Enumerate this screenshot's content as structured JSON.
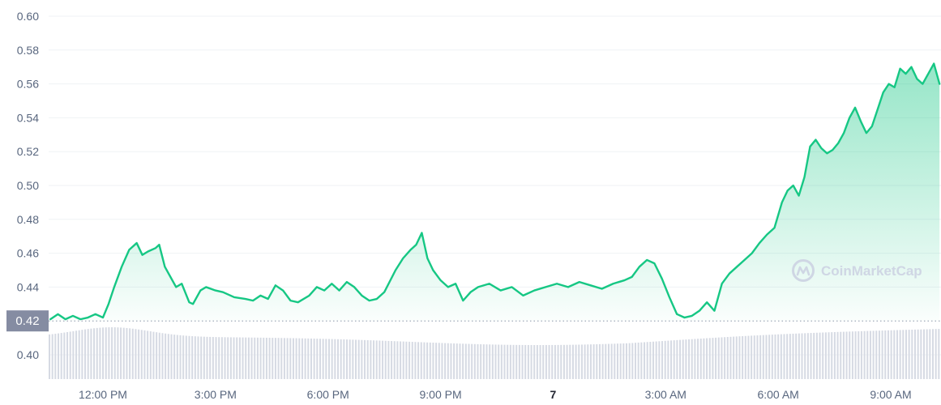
{
  "chart_data": {
    "type": "area",
    "title": "",
    "xlabel": "",
    "ylabel": "",
    "ylim": [
      0.385,
      0.605
    ],
    "yticks": [
      "0.60",
      "0.58",
      "0.56",
      "0.54",
      "0.52",
      "0.50",
      "0.48",
      "0.46",
      "0.44",
      "0.40"
    ],
    "ytick_values": [
      0.6,
      0.58,
      0.56,
      0.54,
      0.52,
      0.5,
      0.48,
      0.46,
      0.44,
      0.4
    ],
    "xticks": [
      "12:00 PM",
      "3:00 PM",
      "6:00 PM",
      "9:00 PM",
      "7",
      "3:00 AM",
      "6:00 AM",
      "9:00 AM"
    ],
    "xtick_hours": [
      12,
      15,
      18,
      21,
      24,
      27,
      30,
      33
    ],
    "xtick_bold": [
      false,
      false,
      false,
      false,
      true,
      false,
      false,
      false
    ],
    "x_range_hours": [
      10.6,
      34.3
    ],
    "baseline": {
      "label": "0.42",
      "value": 0.42
    },
    "line_color": "#16c784",
    "grid": true,
    "watermark": "CoinMarketCap",
    "series": [
      {
        "values": [
          [
            10.6,
            0.421
          ],
          [
            10.8,
            0.424
          ],
          [
            11.0,
            0.421
          ],
          [
            11.2,
            0.423
          ],
          [
            11.4,
            0.421
          ],
          [
            11.6,
            0.422
          ],
          [
            11.8,
            0.424
          ],
          [
            12.0,
            0.422
          ],
          [
            12.15,
            0.43
          ],
          [
            12.3,
            0.44
          ],
          [
            12.5,
            0.452
          ],
          [
            12.7,
            0.462
          ],
          [
            12.9,
            0.466
          ],
          [
            13.05,
            0.459
          ],
          [
            13.2,
            0.461
          ],
          [
            13.4,
            0.463
          ],
          [
            13.5,
            0.465
          ],
          [
            13.65,
            0.452
          ],
          [
            13.8,
            0.446
          ],
          [
            13.95,
            0.44
          ],
          [
            14.1,
            0.442
          ],
          [
            14.3,
            0.431
          ],
          [
            14.4,
            0.43
          ],
          [
            14.6,
            0.438
          ],
          [
            14.75,
            0.44
          ],
          [
            15.0,
            0.438
          ],
          [
            15.2,
            0.437
          ],
          [
            15.5,
            0.434
          ],
          [
            15.8,
            0.433
          ],
          [
            16.0,
            0.432
          ],
          [
            16.2,
            0.435
          ],
          [
            16.4,
            0.433
          ],
          [
            16.6,
            0.441
          ],
          [
            16.8,
            0.438
          ],
          [
            17.0,
            0.432
          ],
          [
            17.2,
            0.431
          ],
          [
            17.5,
            0.435
          ],
          [
            17.7,
            0.44
          ],
          [
            17.9,
            0.438
          ],
          [
            18.1,
            0.442
          ],
          [
            18.3,
            0.438
          ],
          [
            18.5,
            0.443
          ],
          [
            18.7,
            0.44
          ],
          [
            18.9,
            0.435
          ],
          [
            19.1,
            0.432
          ],
          [
            19.3,
            0.433
          ],
          [
            19.5,
            0.437
          ],
          [
            19.8,
            0.45
          ],
          [
            20.0,
            0.457
          ],
          [
            20.2,
            0.462
          ],
          [
            20.35,
            0.465
          ],
          [
            20.5,
            0.472
          ],
          [
            20.65,
            0.457
          ],
          [
            20.8,
            0.45
          ],
          [
            21.0,
            0.444
          ],
          [
            21.2,
            0.44
          ],
          [
            21.4,
            0.442
          ],
          [
            21.6,
            0.432
          ],
          [
            21.8,
            0.437
          ],
          [
            22.0,
            0.44
          ],
          [
            22.3,
            0.442
          ],
          [
            22.6,
            0.438
          ],
          [
            22.9,
            0.44
          ],
          [
            23.2,
            0.435
          ],
          [
            23.5,
            0.438
          ],
          [
            23.8,
            0.44
          ],
          [
            24.1,
            0.442
          ],
          [
            24.4,
            0.44
          ],
          [
            24.7,
            0.443
          ],
          [
            25.0,
            0.441
          ],
          [
            25.3,
            0.439
          ],
          [
            25.6,
            0.442
          ],
          [
            25.9,
            0.444
          ],
          [
            26.1,
            0.446
          ],
          [
            26.3,
            0.452
          ],
          [
            26.5,
            0.456
          ],
          [
            26.7,
            0.454
          ],
          [
            26.9,
            0.445
          ],
          [
            27.1,
            0.434
          ],
          [
            27.3,
            0.424
          ],
          [
            27.5,
            0.422
          ],
          [
            27.7,
            0.423
          ],
          [
            27.9,
            0.426
          ],
          [
            28.1,
            0.431
          ],
          [
            28.3,
            0.426
          ],
          [
            28.5,
            0.442
          ],
          [
            28.7,
            0.448
          ],
          [
            28.9,
            0.452
          ],
          [
            29.1,
            0.456
          ],
          [
            29.3,
            0.46
          ],
          [
            29.5,
            0.466
          ],
          [
            29.7,
            0.471
          ],
          [
            29.9,
            0.475
          ],
          [
            30.1,
            0.49
          ],
          [
            30.25,
            0.497
          ],
          [
            30.4,
            0.5
          ],
          [
            30.55,
            0.494
          ],
          [
            30.7,
            0.505
          ],
          [
            30.85,
            0.523
          ],
          [
            31.0,
            0.527
          ],
          [
            31.15,
            0.522
          ],
          [
            31.3,
            0.519
          ],
          [
            31.45,
            0.521
          ],
          [
            31.6,
            0.525
          ],
          [
            31.75,
            0.531
          ],
          [
            31.9,
            0.54
          ],
          [
            32.05,
            0.546
          ],
          [
            32.2,
            0.538
          ],
          [
            32.35,
            0.531
          ],
          [
            32.5,
            0.535
          ],
          [
            32.65,
            0.545
          ],
          [
            32.8,
            0.555
          ],
          [
            32.95,
            0.56
          ],
          [
            33.1,
            0.558
          ],
          [
            33.25,
            0.569
          ],
          [
            33.4,
            0.566
          ],
          [
            33.55,
            0.57
          ],
          [
            33.7,
            0.563
          ],
          [
            33.85,
            0.56
          ],
          [
            34.0,
            0.566
          ],
          [
            34.15,
            0.572
          ],
          [
            34.3,
            0.56
          ]
        ]
      }
    ]
  }
}
